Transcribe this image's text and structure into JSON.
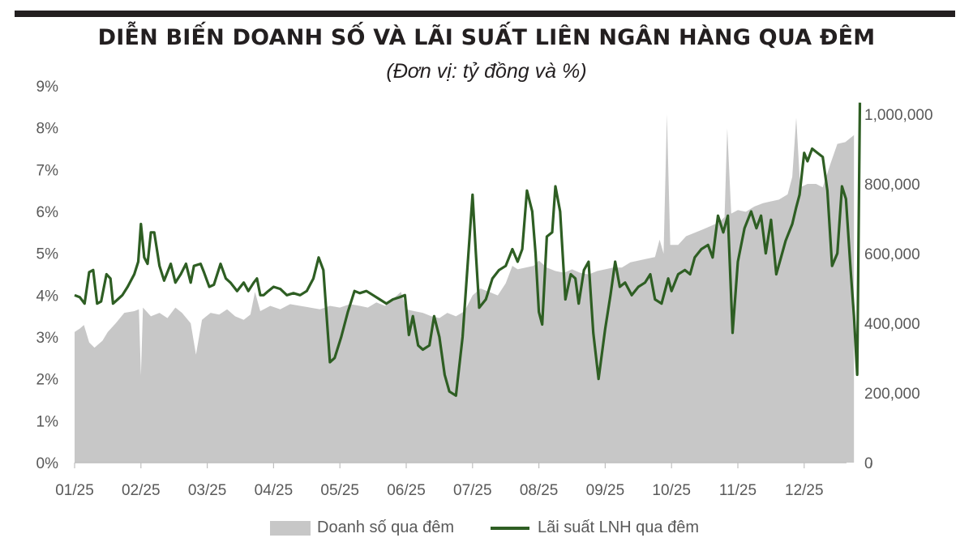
{
  "title": "DIỄN BIẾN DOANH SỐ VÀ LÃI SUẤT LIÊN NGÂN HÀNG QUA ĐÊM",
  "subtitle": "(Đơn vị: tỷ đồng và %)",
  "legend": {
    "area_label": "Doanh số qua đêm",
    "line_label": "Lãi suất LNH qua đêm"
  },
  "colors": {
    "area": "#c7c7c7",
    "line": "#2e5e23",
    "text": "#595959",
    "title": "#231f20"
  },
  "chart_data": {
    "type": "line",
    "x_labels": [
      "01/25",
      "02/25",
      "03/25",
      "04/25",
      "05/25",
      "06/25",
      "07/25",
      "08/25",
      "09/25",
      "10/25",
      "11/25",
      "12/25"
    ],
    "left_axis": {
      "ticks": [
        "0%",
        "1%",
        "2%",
        "3%",
        "4%",
        "5%",
        "6%",
        "7%",
        "8%",
        "9%"
      ],
      "range": [
        0,
        9
      ]
    },
    "right_axis": {
      "ticks": [
        "0",
        "200,000",
        "400,000",
        "600,000",
        "800,000",
        "1,000,000"
      ],
      "range": [
        0,
        1050000
      ]
    },
    "legend_position": "bottom",
    "grid": false,
    "series": [
      {
        "name": "Doanh số qua đêm",
        "type": "area",
        "axis": "right",
        "points": [
          [
            0.0,
            375000
          ],
          [
            0.08,
            385000
          ],
          [
            0.14,
            395000
          ],
          [
            0.22,
            345000
          ],
          [
            0.3,
            330000
          ],
          [
            0.42,
            350000
          ],
          [
            0.5,
            375000
          ],
          [
            0.62,
            400000
          ],
          [
            0.75,
            430000
          ],
          [
            0.9,
            435000
          ],
          [
            0.97,
            440000
          ],
          [
            1.0,
            250000
          ],
          [
            1.03,
            445000
          ],
          [
            1.15,
            420000
          ],
          [
            1.28,
            430000
          ],
          [
            1.4,
            415000
          ],
          [
            1.52,
            445000
          ],
          [
            1.62,
            430000
          ],
          [
            1.75,
            400000
          ],
          [
            1.83,
            310000
          ],
          [
            1.92,
            410000
          ],
          [
            2.05,
            430000
          ],
          [
            2.18,
            425000
          ],
          [
            2.3,
            440000
          ],
          [
            2.42,
            420000
          ],
          [
            2.55,
            410000
          ],
          [
            2.65,
            425000
          ],
          [
            2.72,
            490000
          ],
          [
            2.8,
            435000
          ],
          [
            2.95,
            450000
          ],
          [
            3.1,
            440000
          ],
          [
            3.25,
            455000
          ],
          [
            3.4,
            450000
          ],
          [
            3.55,
            445000
          ],
          [
            3.7,
            440000
          ],
          [
            3.85,
            450000
          ],
          [
            4.0,
            445000
          ],
          [
            4.15,
            455000
          ],
          [
            4.3,
            450000
          ],
          [
            4.42,
            445000
          ],
          [
            4.55,
            460000
          ],
          [
            4.68,
            450000
          ],
          [
            4.8,
            470000
          ],
          [
            4.92,
            490000
          ],
          [
            5.0,
            440000
          ],
          [
            5.12,
            435000
          ],
          [
            5.25,
            430000
          ],
          [
            5.38,
            420000
          ],
          [
            5.5,
            415000
          ],
          [
            5.62,
            430000
          ],
          [
            5.75,
            420000
          ],
          [
            5.88,
            435000
          ],
          [
            6.0,
            480000
          ],
          [
            6.12,
            500000
          ],
          [
            6.25,
            490000
          ],
          [
            6.38,
            480000
          ],
          [
            6.5,
            515000
          ],
          [
            6.6,
            565000
          ],
          [
            6.68,
            555000
          ],
          [
            6.8,
            560000
          ],
          [
            6.92,
            565000
          ],
          [
            7.0,
            580000
          ],
          [
            7.12,
            560000
          ],
          [
            7.25,
            550000
          ],
          [
            7.38,
            545000
          ],
          [
            7.5,
            555000
          ],
          [
            7.62,
            545000
          ],
          [
            7.75,
            540000
          ],
          [
            7.88,
            550000
          ],
          [
            8.0,
            555000
          ],
          [
            8.12,
            560000
          ],
          [
            8.25,
            560000
          ],
          [
            8.38,
            575000
          ],
          [
            8.5,
            580000
          ],
          [
            8.62,
            585000
          ],
          [
            8.75,
            590000
          ],
          [
            8.82,
            640000
          ],
          [
            8.88,
            600000
          ],
          [
            8.93,
            1000000
          ],
          [
            8.98,
            625000
          ],
          [
            9.1,
            625000
          ],
          [
            9.22,
            650000
          ],
          [
            9.35,
            660000
          ],
          [
            9.48,
            670000
          ],
          [
            9.6,
            680000
          ],
          [
            9.72,
            690000
          ],
          [
            9.8,
            705000
          ],
          [
            9.84,
            960000
          ],
          [
            9.9,
            715000
          ],
          [
            10.0,
            725000
          ],
          [
            10.12,
            720000
          ],
          [
            10.25,
            735000
          ],
          [
            10.38,
            745000
          ],
          [
            10.5,
            750000
          ],
          [
            10.62,
            755000
          ],
          [
            10.75,
            770000
          ],
          [
            10.82,
            820000
          ],
          [
            10.88,
            990000
          ],
          [
            10.94,
            790000
          ],
          [
            11.05,
            800000
          ],
          [
            11.18,
            800000
          ],
          [
            11.28,
            790000
          ],
          [
            11.4,
            860000
          ],
          [
            11.5,
            915000
          ],
          [
            11.62,
            920000
          ],
          [
            11.75,
            940000
          ]
        ]
      },
      {
        "name": "Lãi suất LNH qua đêm",
        "type": "line",
        "axis": "left",
        "points": [
          [
            0.0,
            4.0
          ],
          [
            0.08,
            3.95
          ],
          [
            0.15,
            3.8
          ],
          [
            0.22,
            4.55
          ],
          [
            0.28,
            4.6
          ],
          [
            0.34,
            3.8
          ],
          [
            0.4,
            3.85
          ],
          [
            0.48,
            4.5
          ],
          [
            0.54,
            4.4
          ],
          [
            0.58,
            3.8
          ],
          [
            0.65,
            3.9
          ],
          [
            0.72,
            4.0
          ],
          [
            0.8,
            4.2
          ],
          [
            0.9,
            4.5
          ],
          [
            0.96,
            4.8
          ],
          [
            1.0,
            5.7
          ],
          [
            1.05,
            4.9
          ],
          [
            1.1,
            4.75
          ],
          [
            1.15,
            5.5
          ],
          [
            1.2,
            5.5
          ],
          [
            1.28,
            4.7
          ],
          [
            1.35,
            4.35
          ],
          [
            1.45,
            4.75
          ],
          [
            1.52,
            4.3
          ],
          [
            1.6,
            4.5
          ],
          [
            1.68,
            4.75
          ],
          [
            1.75,
            4.3
          ],
          [
            1.8,
            4.7
          ],
          [
            1.9,
            4.75
          ],
          [
            1.95,
            4.55
          ],
          [
            2.03,
            4.2
          ],
          [
            2.1,
            4.25
          ],
          [
            2.2,
            4.75
          ],
          [
            2.28,
            4.4
          ],
          [
            2.35,
            4.3
          ],
          [
            2.45,
            4.1
          ],
          [
            2.55,
            4.3
          ],
          [
            2.62,
            4.1
          ],
          [
            2.7,
            4.3
          ],
          [
            2.75,
            4.4
          ],
          [
            2.8,
            4.0
          ],
          [
            2.85,
            4.0
          ],
          [
            2.92,
            4.1
          ],
          [
            3.0,
            4.2
          ],
          [
            3.1,
            4.15
          ],
          [
            3.2,
            4.0
          ],
          [
            3.3,
            4.05
          ],
          [
            3.4,
            4.0
          ],
          [
            3.5,
            4.1
          ],
          [
            3.6,
            4.4
          ],
          [
            3.68,
            4.9
          ],
          [
            3.75,
            4.6
          ],
          [
            3.85,
            2.4
          ],
          [
            3.92,
            2.5
          ],
          [
            4.02,
            3.0
          ],
          [
            4.12,
            3.6
          ],
          [
            4.22,
            4.1
          ],
          [
            4.3,
            4.05
          ],
          [
            4.4,
            4.1
          ],
          [
            4.5,
            4.0
          ],
          [
            4.6,
            3.9
          ],
          [
            4.7,
            3.8
          ],
          [
            4.8,
            3.9
          ],
          [
            4.9,
            3.95
          ],
          [
            4.98,
            4.0
          ],
          [
            5.04,
            3.05
          ],
          [
            5.1,
            3.5
          ],
          [
            5.18,
            2.8
          ],
          [
            5.25,
            2.7
          ],
          [
            5.35,
            2.8
          ],
          [
            5.42,
            3.5
          ],
          [
            5.5,
            3.0
          ],
          [
            5.58,
            2.1
          ],
          [
            5.65,
            1.7
          ],
          [
            5.75,
            1.6
          ],
          [
            5.85,
            3.0
          ],
          [
            6.0,
            6.4
          ],
          [
            6.05,
            5.0
          ],
          [
            6.1,
            3.7
          ],
          [
            6.2,
            3.9
          ],
          [
            6.3,
            4.4
          ],
          [
            6.4,
            4.6
          ],
          [
            6.5,
            4.7
          ],
          [
            6.6,
            5.1
          ],
          [
            6.68,
            4.8
          ],
          [
            6.75,
            5.1
          ],
          [
            6.82,
            6.5
          ],
          [
            6.9,
            6.0
          ],
          [
            6.95,
            5.0
          ],
          [
            7.0,
            3.6
          ],
          [
            7.05,
            3.3
          ],
          [
            7.12,
            5.4
          ],
          [
            7.2,
            5.5
          ],
          [
            7.25,
            6.6
          ],
          [
            7.32,
            6.0
          ],
          [
            7.4,
            3.9
          ],
          [
            7.48,
            4.5
          ],
          [
            7.55,
            4.4
          ],
          [
            7.6,
            3.8
          ],
          [
            7.68,
            4.6
          ],
          [
            7.75,
            4.8
          ],
          [
            7.82,
            3.1
          ],
          [
            7.9,
            2.0
          ],
          [
            8.0,
            3.2
          ],
          [
            8.08,
            4.0
          ],
          [
            8.15,
            4.8
          ],
          [
            8.22,
            4.2
          ],
          [
            8.3,
            4.3
          ],
          [
            8.4,
            4.0
          ],
          [
            8.5,
            4.2
          ],
          [
            8.6,
            4.3
          ],
          [
            8.68,
            4.5
          ],
          [
            8.75,
            3.9
          ],
          [
            8.85,
            3.8
          ],
          [
            8.95,
            4.4
          ],
          [
            9.0,
            4.1
          ],
          [
            9.1,
            4.5
          ],
          [
            9.2,
            4.6
          ],
          [
            9.28,
            4.5
          ],
          [
            9.35,
            4.9
          ],
          [
            9.45,
            5.1
          ],
          [
            9.55,
            5.2
          ],
          [
            9.62,
            4.9
          ],
          [
            9.7,
            5.9
          ],
          [
            9.78,
            5.5
          ],
          [
            9.85,
            5.9
          ],
          [
            9.92,
            3.1
          ],
          [
            10.0,
            4.8
          ],
          [
            10.1,
            5.6
          ],
          [
            10.2,
            6.0
          ],
          [
            10.28,
            5.6
          ],
          [
            10.35,
            5.9
          ],
          [
            10.42,
            5.0
          ],
          [
            10.5,
            5.8
          ],
          [
            10.58,
            4.5
          ],
          [
            10.65,
            4.9
          ],
          [
            10.72,
            5.3
          ],
          [
            10.82,
            5.7
          ],
          [
            10.88,
            6.1
          ],
          [
            10.93,
            6.4
          ],
          [
            11.0,
            7.4
          ],
          [
            11.05,
            7.2
          ],
          [
            11.12,
            7.5
          ],
          [
            11.2,
            7.4
          ],
          [
            11.28,
            7.3
          ],
          [
            11.35,
            6.5
          ],
          [
            11.42,
            4.7
          ],
          [
            11.5,
            5.0
          ],
          [
            11.57,
            6.6
          ],
          [
            11.63,
            6.3
          ],
          [
            11.7,
            4.6
          ],
          [
            11.75,
            3.5
          ],
          [
            11.8,
            2.1
          ],
          [
            11.84,
            8.6
          ]
        ]
      }
    ]
  }
}
